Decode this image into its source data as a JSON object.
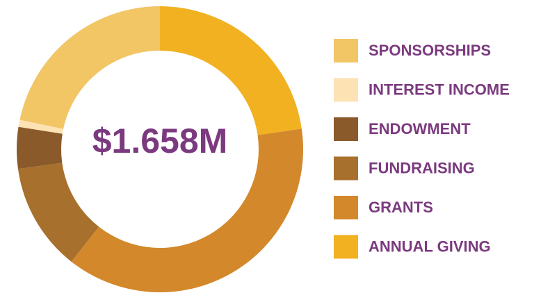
{
  "chart_data": {
    "type": "donut",
    "center_label": "$1.658M",
    "categories": [
      "SPONSORSHIPS",
      "INTEREST INCOME",
      "ENDOWMENT",
      "FUNDRAISING",
      "GRANTS",
      "ANNUAL GIVING"
    ],
    "values": [
      21.7,
      0.8,
      4.7,
      12.2,
      37.9,
      22.7
    ],
    "colors": [
      "#f2c565",
      "#fde2b4",
      "#8b5a2b",
      "#a8702d",
      "#d3882b",
      "#f1b121"
    ],
    "legend": "right"
  }
}
